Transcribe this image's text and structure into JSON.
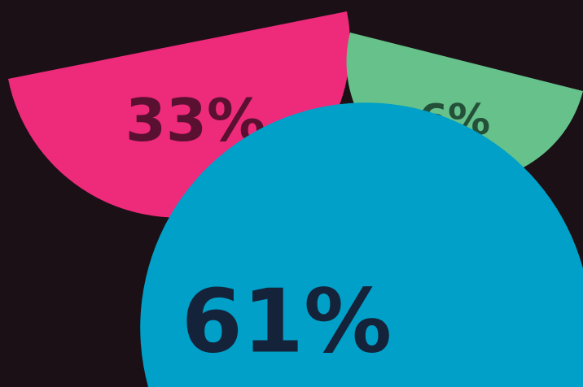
{
  "chart_data": {
    "type": "pie",
    "title": "",
    "slices": [
      {
        "label": "33%",
        "value": 33,
        "color": "#ee2a7b",
        "label_color": "#5a1030"
      },
      {
        "label": "6%",
        "value": 6,
        "color": "#66c28a",
        "label_color": "#24503a"
      },
      {
        "label": "61%",
        "value": 61,
        "color": "#00a0c8",
        "label_color": "#14233a"
      }
    ],
    "legend": "none",
    "background_color": "#1a1016"
  }
}
